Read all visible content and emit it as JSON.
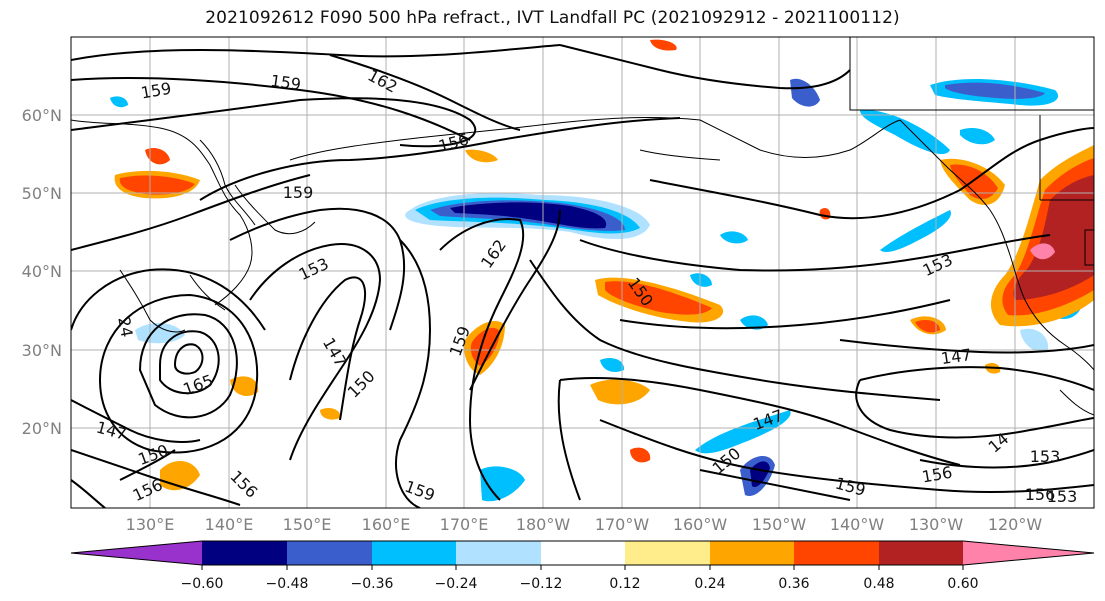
{
  "title": "2021092612 F090 500 hPa refract., IVT Landfall PC (2021092912 - 2021100112)",
  "map": {
    "lat_ticks": [
      "60°N",
      "50°N",
      "40°N",
      "30°N",
      "20°N"
    ],
    "lon_ticks": [
      "130°E",
      "140°E",
      "150°E",
      "160°E",
      "170°E",
      "180°W",
      "170°W",
      "160°W",
      "150°W",
      "140°W",
      "130°W",
      "120°W"
    ],
    "contour_labels": [
      {
        "text": "159"
      },
      {
        "text": "159"
      },
      {
        "text": "162"
      },
      {
        "text": "156"
      },
      {
        "text": "159"
      },
      {
        "text": "153"
      },
      {
        "text": "162"
      },
      {
        "text": "147"
      },
      {
        "text": "150"
      },
      {
        "text": "159"
      },
      {
        "text": "150"
      },
      {
        "text": "153"
      },
      {
        "text": "147"
      },
      {
        "text": "147"
      },
      {
        "text": "150"
      },
      {
        "text": "147"
      },
      {
        "text": "156"
      },
      {
        "text": "159"
      },
      {
        "text": "159"
      },
      {
        "text": "156"
      },
      {
        "text": "153"
      },
      {
        "text": "156"
      },
      {
        "text": "150"
      },
      {
        "text": "156"
      },
      {
        "text": "14"
      },
      {
        "text": "153"
      },
      {
        "text": "165"
      },
      {
        "text": "24"
      }
    ]
  },
  "colorbar": {
    "colors": [
      "#9932cc",
      "#000080",
      "#3a5fcd",
      "#00bfff",
      "#b0e2ff",
      "#ffffff",
      "#ffec8b",
      "#ffa500",
      "#ff4500",
      "#b22222",
      "#ff82ab"
    ],
    "tick_labels": [
      "−0.60",
      "−0.48",
      "−0.36",
      "−0.24",
      "−0.12",
      "0.12",
      "0.24",
      "0.36",
      "0.48",
      "0.60"
    ]
  }
}
